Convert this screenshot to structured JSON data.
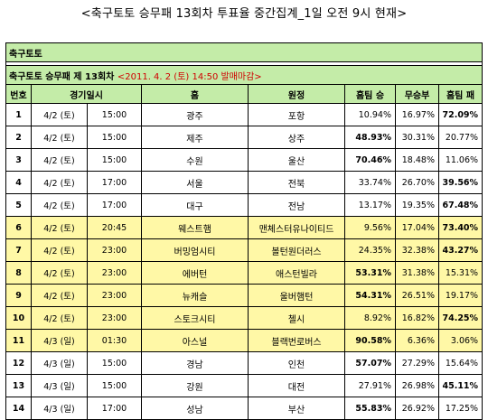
{
  "page_title": "<축구토토 승무패 13회차 투표율 중간집계_1일 오전 9시 현재>",
  "section_label": "축구토토",
  "subheader": {
    "game_name": "축구토토 승무패 제 13회차",
    "deadline": "<2011. 4. 2 (토) 14:50 발매마감>"
  },
  "headers": [
    "번호",
    "경기일시",
    "",
    "홈",
    "원정",
    "홈팀 승",
    "무승부",
    "홈팀 패"
  ],
  "colors": {
    "section_bg": "#c4eca8",
    "highlight_bg": "#fff8a6",
    "deadline_text": "#d00000"
  },
  "rows": [
    {
      "num": "1",
      "date": "4/2 (토)",
      "time": "15:00",
      "home": "광주",
      "away": "포항",
      "win": "10.94%",
      "draw": "16.97%",
      "lose": "72.09%",
      "bold": "lose",
      "highlight": false
    },
    {
      "num": "2",
      "date": "4/2 (토)",
      "time": "15:00",
      "home": "제주",
      "away": "상주",
      "win": "48.93%",
      "draw": "30.31%",
      "lose": "20.77%",
      "bold": "win",
      "highlight": false
    },
    {
      "num": "3",
      "date": "4/2 (토)",
      "time": "15:00",
      "home": "수원",
      "away": "울산",
      "win": "70.46%",
      "draw": "18.48%",
      "lose": "11.06%",
      "bold": "win",
      "highlight": false
    },
    {
      "num": "4",
      "date": "4/2 (토)",
      "time": "17:00",
      "home": "서울",
      "away": "전북",
      "win": "33.74%",
      "draw": "26.70%",
      "lose": "39.56%",
      "bold": "lose",
      "highlight": false
    },
    {
      "num": "5",
      "date": "4/2 (토)",
      "time": "17:00",
      "home": "대구",
      "away": "전남",
      "win": "13.17%",
      "draw": "19.35%",
      "lose": "67.48%",
      "bold": "lose",
      "highlight": false
    },
    {
      "num": "6",
      "date": "4/2 (토)",
      "time": "20:45",
      "home": "웨스트햄",
      "away": "맨체스터유나이티드",
      "win": "9.56%",
      "draw": "17.04%",
      "lose": "73.40%",
      "bold": "lose",
      "highlight": true
    },
    {
      "num": "7",
      "date": "4/2 (토)",
      "time": "23:00",
      "home": "버밍엄시티",
      "away": "볼턴원더러스",
      "win": "24.35%",
      "draw": "32.38%",
      "lose": "43.27%",
      "bold": "lose",
      "highlight": true
    },
    {
      "num": "8",
      "date": "4/2 (토)",
      "time": "23:00",
      "home": "에버턴",
      "away": "애스턴빌라",
      "win": "53.31%",
      "draw": "31.38%",
      "lose": "15.31%",
      "bold": "win",
      "highlight": true
    },
    {
      "num": "9",
      "date": "4/2 (토)",
      "time": "23:00",
      "home": "뉴캐슬",
      "away": "울버햄턴",
      "win": "54.31%",
      "draw": "26.51%",
      "lose": "19.17%",
      "bold": "win",
      "highlight": true
    },
    {
      "num": "10",
      "date": "4/2 (토)",
      "time": "23:00",
      "home": "스토크시티",
      "away": "첼시",
      "win": "8.92%",
      "draw": "16.82%",
      "lose": "74.25%",
      "bold": "lose",
      "highlight": true
    },
    {
      "num": "11",
      "date": "4/3 (일)",
      "time": "01:30",
      "home": "아스널",
      "away": "블랙번로버스",
      "win": "90.58%",
      "draw": "6.36%",
      "lose": "3.06%",
      "bold": "win",
      "highlight": true
    },
    {
      "num": "12",
      "date": "4/3 (일)",
      "time": "15:00",
      "home": "경남",
      "away": "인천",
      "win": "57.07%",
      "draw": "27.29%",
      "lose": "15.64%",
      "bold": "win",
      "highlight": false
    },
    {
      "num": "13",
      "date": "4/3 (일)",
      "time": "15:00",
      "home": "강원",
      "away": "대전",
      "win": "27.91%",
      "draw": "26.98%",
      "lose": "45.11%",
      "bold": "lose",
      "highlight": false
    },
    {
      "num": "14",
      "date": "4/3 (일)",
      "time": "17:00",
      "home": "성남",
      "away": "부산",
      "win": "55.83%",
      "draw": "26.92%",
      "lose": "17.25%",
      "bold": "win",
      "highlight": false
    }
  ]
}
